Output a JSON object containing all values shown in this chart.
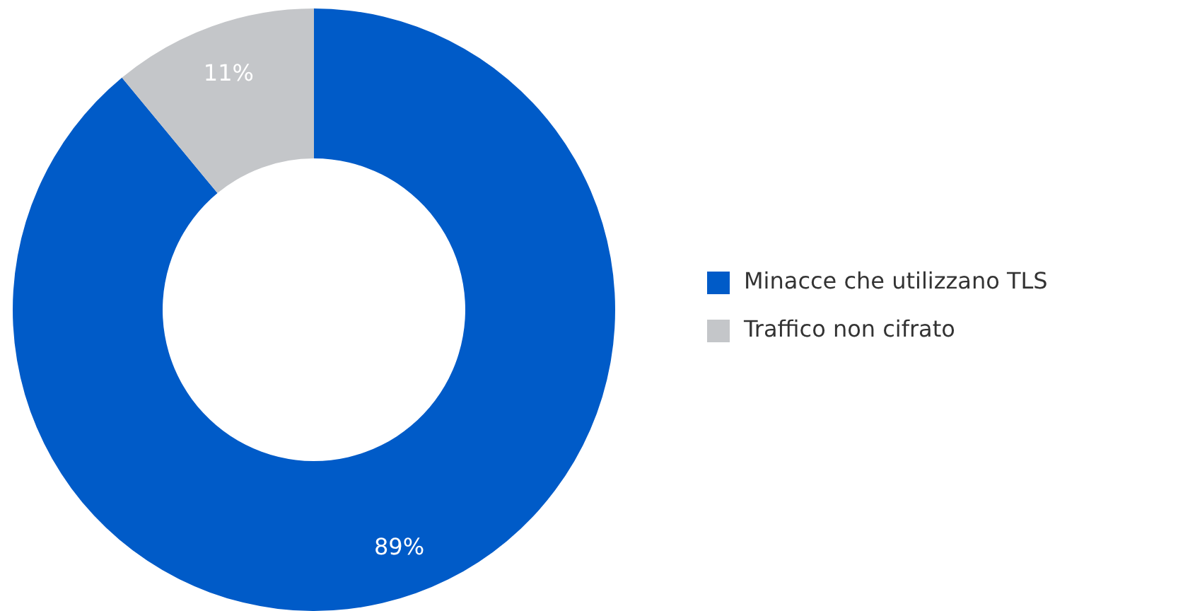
{
  "chart_data": {
    "type": "donut",
    "categories": [
      "Minacce che utilizzano TLS",
      "Traffico non cifrato"
    ],
    "values": [
      89,
      11
    ],
    "colors": [
      "#005bc8",
      "#c4c6c9"
    ],
    "value_labels": [
      "89%",
      "11%"
    ],
    "legend": "right"
  }
}
